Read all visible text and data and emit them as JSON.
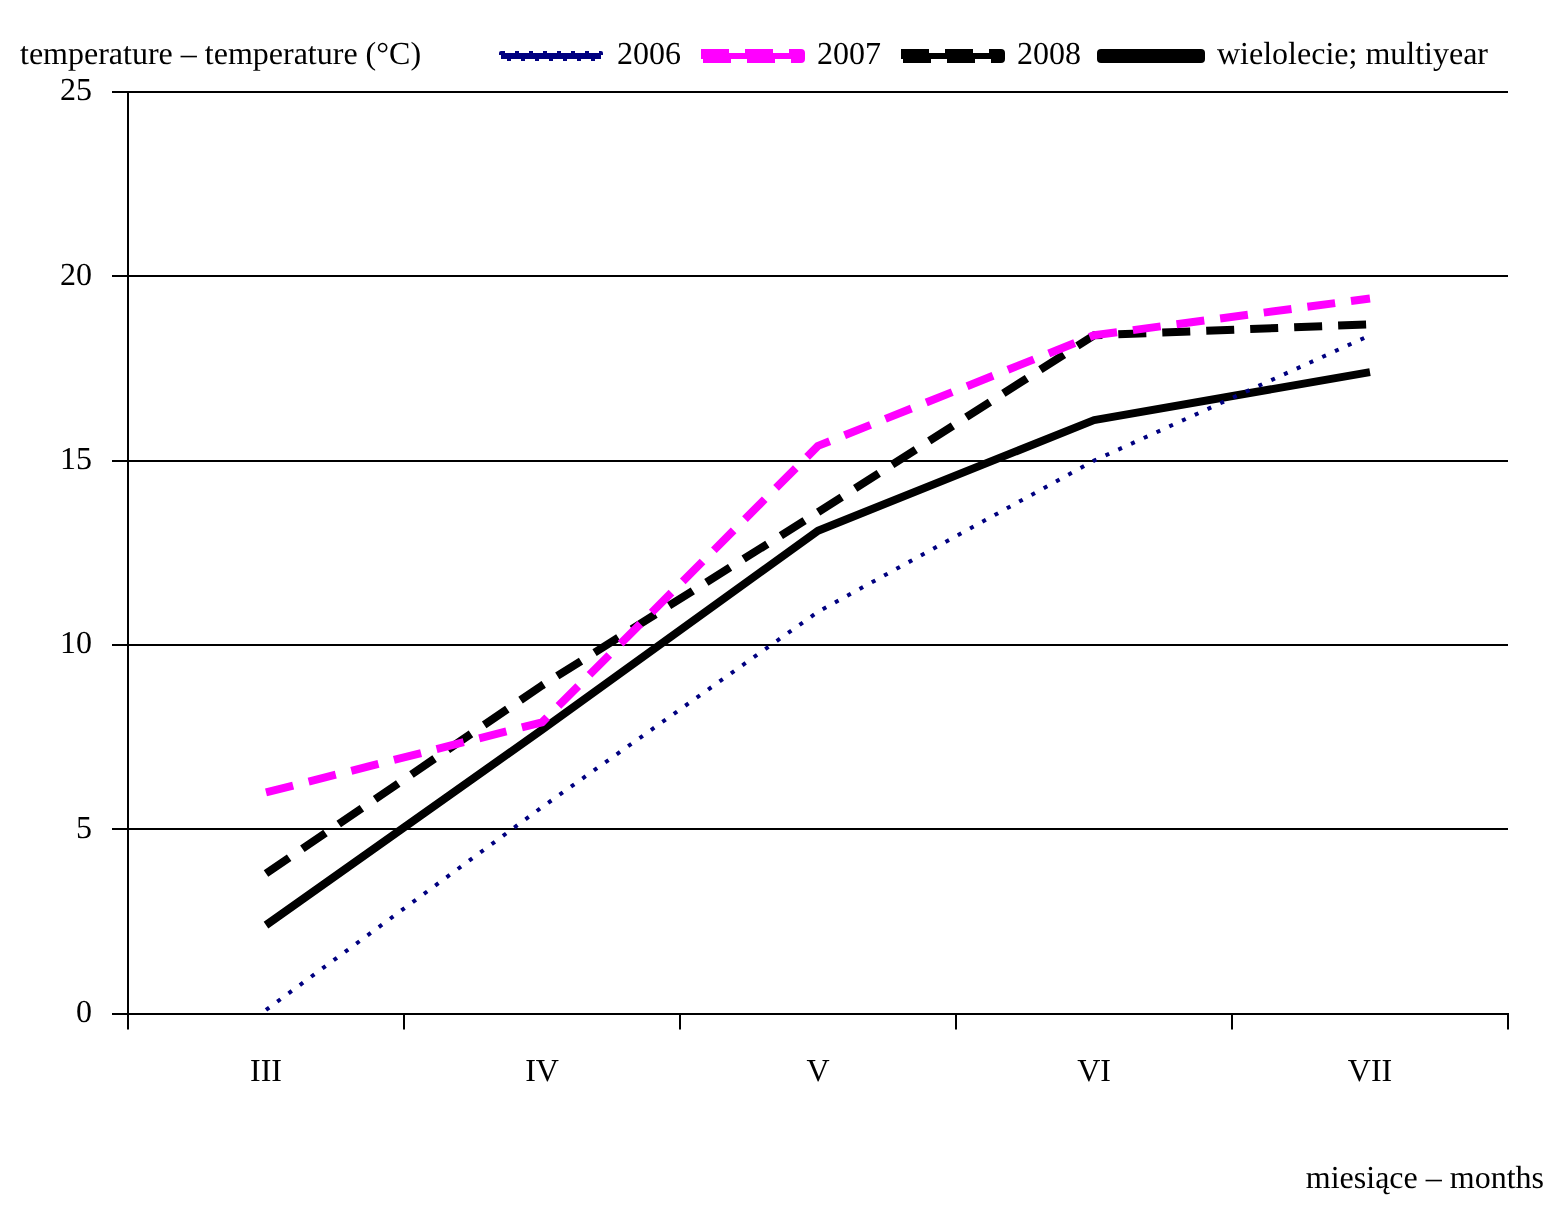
{
  "chart_data": {
    "type": "line",
    "xlabel": "miesiące – months",
    "ylabel": "temperature – temperature (°C)",
    "categories": [
      "III",
      "IV",
      "V",
      "VI",
      "VII"
    ],
    "series": [
      {
        "name": "2006",
        "color": "#000080",
        "line_style": "dotted",
        "values": [
          0.1,
          5.6,
          10.9,
          15.0,
          18.4
        ]
      },
      {
        "name": "2007",
        "color": "#ff00ff",
        "line_style": "dashed",
        "values": [
          6.0,
          7.9,
          15.4,
          18.4,
          19.4
        ]
      },
      {
        "name": "2008",
        "color": "#000000",
        "line_style": "dashed",
        "values": [
          3.8,
          8.9,
          13.6,
          18.4,
          18.7
        ]
      },
      {
        "name": "wielolecie; multiyear",
        "color": "#000000",
        "line_style": "solid",
        "values": [
          2.4,
          7.7,
          13.1,
          16.1,
          17.4
        ]
      }
    ],
    "ylim": [
      0,
      25
    ],
    "yticks": [
      0,
      5,
      10,
      15,
      20,
      25
    ],
    "grid": "y",
    "legend": "top right",
    "marker": "none"
  }
}
